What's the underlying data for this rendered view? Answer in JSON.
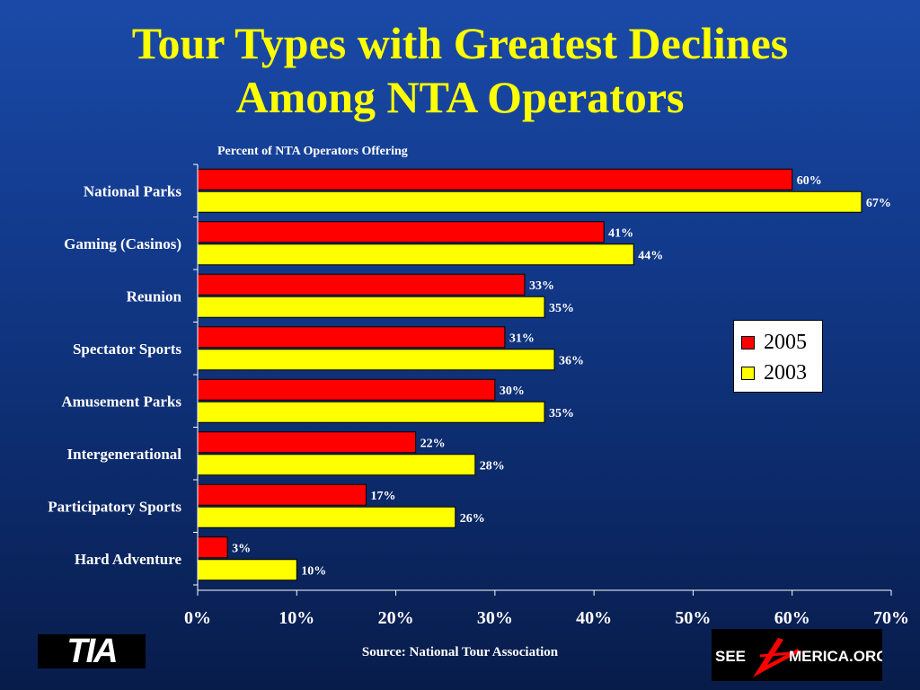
{
  "title_line1": "Tour Types with Greatest Declines",
  "title_line2": "Among NTA Operators",
  "subtitle": "Percent of NTA Operators Offering",
  "source": "Source:  National Tour Association",
  "logos": {
    "tia": "TIA",
    "see_america": "SEEAMERICA.ORG"
  },
  "colors": {
    "series_2005": "#ff0000",
    "series_2003": "#ffff00",
    "title": "#ffff00"
  },
  "chart_data": {
    "type": "bar",
    "orientation": "horizontal",
    "categories": [
      "National Parks",
      "Gaming (Casinos)",
      "Reunion",
      "Spectator Sports",
      "Amusement Parks",
      "Intergenerational",
      "Participatory Sports",
      "Hard Adventure"
    ],
    "series": [
      {
        "name": "2005",
        "values": [
          60,
          41,
          33,
          31,
          30,
          22,
          17,
          3
        ],
        "color": "#ff0000"
      },
      {
        "name": "2003",
        "values": [
          67,
          44,
          35,
          36,
          35,
          28,
          26,
          10
        ],
        "color": "#ffff00"
      }
    ],
    "data_labels": {
      "2005": [
        "60%",
        "41%",
        "33%",
        "31%",
        "30%",
        "22%",
        "17%",
        "3%"
      ],
      "2003": [
        "67%",
        "44%",
        "35%",
        "36%",
        "35%",
        "28%",
        "26%",
        "10%"
      ]
    },
    "xlim": [
      0,
      70
    ],
    "xticks": [
      "0%",
      "10%",
      "20%",
      "30%",
      "40%",
      "50%",
      "60%",
      "70%"
    ],
    "grid": false,
    "legend": [
      "2005",
      "2003"
    ],
    "legend_position": "right"
  }
}
